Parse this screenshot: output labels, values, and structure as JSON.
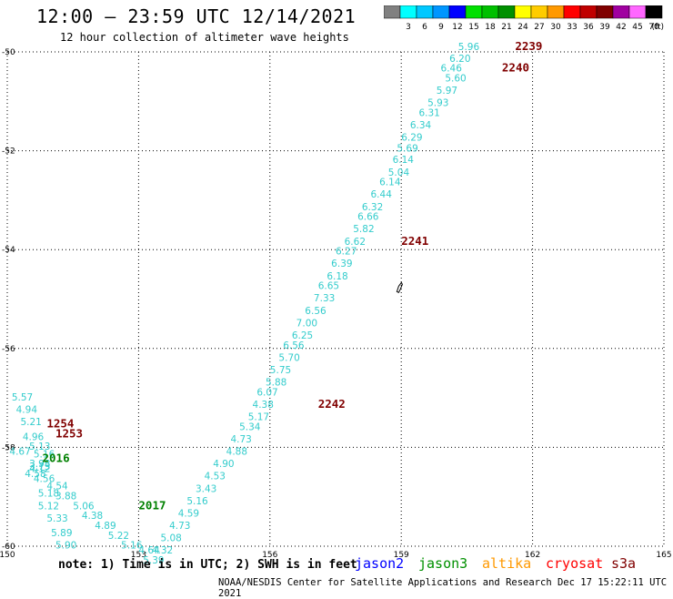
{
  "title": "12:00 – 23:59 UTC 12/14/2021",
  "subtitle": "12 hour collection of altimeter wave heights",
  "legend": {
    "unit_label": "(ft)",
    "bins": [
      {
        "label": "",
        "color": "#808080"
      },
      {
        "label": "3",
        "color": "#00ffff"
      },
      {
        "label": "6",
        "color": "#00c8ff"
      },
      {
        "label": "9",
        "color": "#0096ff"
      },
      {
        "label": "12",
        "color": "#0000ff"
      },
      {
        "label": "15",
        "color": "#00e000"
      },
      {
        "label": "18",
        "color": "#00c000"
      },
      {
        "label": "21",
        "color": "#009000"
      },
      {
        "label": "24",
        "color": "#ffff00"
      },
      {
        "label": "27",
        "color": "#ffcc00"
      },
      {
        "label": "30",
        "color": "#ff9900"
      },
      {
        "label": "33",
        "color": "#ff0000"
      },
      {
        "label": "36",
        "color": "#c00000"
      },
      {
        "label": "39",
        "color": "#800000"
      },
      {
        "label": "42",
        "color": "#a000a0"
      },
      {
        "label": "45",
        "color": "#ff66ff"
      },
      {
        "label": "70",
        "color": "#000000"
      }
    ]
  },
  "axes": {
    "lon_ticks": [
      "150",
      "153",
      "156",
      "159",
      "162",
      "165"
    ],
    "lat_ticks": [
      "-50",
      "-52",
      "-54",
      "-56",
      "-58",
      "-60"
    ]
  },
  "map_data": {
    "lon_range": [
      150,
      165
    ],
    "lat_range": [
      -60,
      -50
    ],
    "time_labels": [
      {
        "text": "2239",
        "lon": 161.6,
        "lat": -49.96,
        "color": "#800000"
      },
      {
        "text": "2240",
        "lon": 161.3,
        "lat": -50.4,
        "color": "#800000"
      },
      {
        "text": "2241",
        "lon": 159.0,
        "lat": -53.9,
        "color": "#800000"
      },
      {
        "text": "2242",
        "lon": 157.1,
        "lat": -57.2,
        "color": "#800000"
      },
      {
        "text": "1254",
        "lon": 150.9,
        "lat": -57.6,
        "color": "#800000"
      },
      {
        "text": "1253",
        "lon": 151.1,
        "lat": -57.8,
        "color": "#800000"
      },
      {
        "text": "2016",
        "lon": 150.8,
        "lat": -58.3,
        "color": "#008000"
      },
      {
        "text": "2017",
        "lon": 153.0,
        "lat": -59.25,
        "color": "#008000"
      }
    ],
    "swh_labels": [
      {
        "text": "5.96",
        "lon": 160.3,
        "lat": -49.96
      },
      {
        "text": "6.20",
        "lon": 160.1,
        "lat": -50.2
      },
      {
        "text": "6.46",
        "lon": 159.9,
        "lat": -50.4
      },
      {
        "text": "5.60",
        "lon": 160.0,
        "lat": -50.6
      },
      {
        "text": "5.97",
        "lon": 159.8,
        "lat": -50.85
      },
      {
        "text": "5.93",
        "lon": 159.6,
        "lat": -51.1
      },
      {
        "text": "6.31",
        "lon": 159.4,
        "lat": -51.3
      },
      {
        "text": "6.34",
        "lon": 159.2,
        "lat": -51.55
      },
      {
        "text": "6.29",
        "lon": 159.0,
        "lat": -51.8
      },
      {
        "text": "5.69",
        "lon": 158.9,
        "lat": -52.02
      },
      {
        "text": "6.14",
        "lon": 158.8,
        "lat": -52.25
      },
      {
        "text": "5.04",
        "lon": 158.7,
        "lat": -52.5
      },
      {
        "text": "6.14",
        "lon": 158.5,
        "lat": -52.7
      },
      {
        "text": "6.44",
        "lon": 158.3,
        "lat": -52.95
      },
      {
        "text": "6.32",
        "lon": 158.1,
        "lat": -53.2
      },
      {
        "text": "6.66",
        "lon": 158.0,
        "lat": -53.4
      },
      {
        "text": "5.82",
        "lon": 157.9,
        "lat": -53.65
      },
      {
        "text": "6.62",
        "lon": 157.7,
        "lat": -53.9
      },
      {
        "text": "6.27",
        "lon": 157.5,
        "lat": -54.1
      },
      {
        "text": "6.39",
        "lon": 157.4,
        "lat": -54.35
      },
      {
        "text": "6.18",
        "lon": 157.3,
        "lat": -54.6
      },
      {
        "text": "6.65",
        "lon": 157.1,
        "lat": -54.8
      },
      {
        "text": "7.33",
        "lon": 157.0,
        "lat": -55.05
      },
      {
        "text": "6.56",
        "lon": 156.8,
        "lat": -55.3
      },
      {
        "text": "7.00",
        "lon": 156.6,
        "lat": -55.55
      },
      {
        "text": "6.25",
        "lon": 156.5,
        "lat": -55.8
      },
      {
        "text": "6.56",
        "lon": 156.3,
        "lat": -56.0
      },
      {
        "text": "5.70",
        "lon": 156.2,
        "lat": -56.25
      },
      {
        "text": "5.75",
        "lon": 156.0,
        "lat": -56.5
      },
      {
        "text": "5.88",
        "lon": 155.9,
        "lat": -56.75
      },
      {
        "text": "6.07",
        "lon": 155.7,
        "lat": -56.95
      },
      {
        "text": "4.38",
        "lon": 155.6,
        "lat": -57.2
      },
      {
        "text": "5.17",
        "lon": 155.5,
        "lat": -57.45
      },
      {
        "text": "5.34",
        "lon": 155.3,
        "lat": -57.65
      },
      {
        "text": "4.73",
        "lon": 155.1,
        "lat": -57.9
      },
      {
        "text": "4.88",
        "lon": 155.0,
        "lat": -58.15
      },
      {
        "text": "4.90",
        "lon": 154.7,
        "lat": -58.4
      },
      {
        "text": "4.53",
        "lon": 154.5,
        "lat": -58.65
      },
      {
        "text": "3.43",
        "lon": 154.3,
        "lat": -58.9
      },
      {
        "text": "5.16",
        "lon": 154.1,
        "lat": -59.15
      },
      {
        "text": "4.59",
        "lon": 153.9,
        "lat": -59.4
      },
      {
        "text": "4.73",
        "lon": 153.7,
        "lat": -59.65
      },
      {
        "text": "5.08",
        "lon": 153.5,
        "lat": -59.9
      },
      {
        "text": "4.32",
        "lon": 153.3,
        "lat": -60.15
      },
      {
        "text": "4.64",
        "lon": 153.0,
        "lat": -60.15
      },
      {
        "text": "5.39",
        "lon": 153.1,
        "lat": -60.35
      },
      {
        "text": "5.16",
        "lon": 152.6,
        "lat": -60.05
      },
      {
        "text": "5.22",
        "lon": 152.3,
        "lat": -59.85
      },
      {
        "text": "4.89",
        "lon": 152.0,
        "lat": -59.65
      },
      {
        "text": "4.38",
        "lon": 151.7,
        "lat": -59.45
      },
      {
        "text": "5.06",
        "lon": 151.5,
        "lat": -59.25
      },
      {
        "text": "3.88",
        "lon": 151.1,
        "lat": -59.05
      },
      {
        "text": "4.54",
        "lon": 150.9,
        "lat": -58.85
      },
      {
        "text": "4.56",
        "lon": 150.6,
        "lat": -58.7
      },
      {
        "text": "4.58",
        "lon": 150.4,
        "lat": -58.6
      },
      {
        "text": "5.18",
        "lon": 150.7,
        "lat": -59.0
      },
      {
        "text": "5.12",
        "lon": 150.7,
        "lat": -59.25
      },
      {
        "text": "5.33",
        "lon": 150.9,
        "lat": -59.5
      },
      {
        "text": "5.89",
        "lon": 151.0,
        "lat": -59.8
      },
      {
        "text": "5.90",
        "lon": 151.1,
        "lat": -60.05
      },
      {
        "text": "3.98",
        "lon": 150.5,
        "lat": -58.4
      },
      {
        "text": "4.12",
        "lon": 150.5,
        "lat": -58.5
      },
      {
        "text": "3.73",
        "lon": 150.5,
        "lat": -58.45
      },
      {
        "text": "5.16",
        "lon": 150.6,
        "lat": -58.2
      },
      {
        "text": "5.13",
        "lon": 150.5,
        "lat": -58.05
      },
      {
        "text": "4.67",
        "lon": 150.05,
        "lat": -58.15
      },
      {
        "text": "4.96",
        "lon": 150.35,
        "lat": -57.85
      },
      {
        "text": "5.21",
        "lon": 150.3,
        "lat": -57.55
      },
      {
        "text": "4.94",
        "lon": 150.2,
        "lat": -57.3
      },
      {
        "text": "5.57",
        "lon": 150.1,
        "lat": -57.05
      }
    ]
  },
  "note": "note: 1) Time is in UTC; 2) SWH is in feet",
  "satellites": [
    {
      "name": "jason2",
      "color": "#0000ff"
    },
    {
      "name": "jason3",
      "color": "#009000"
    },
    {
      "name": "altika",
      "color": "#ff9900"
    },
    {
      "name": "cryosat",
      "color": "#ff0000"
    },
    {
      "name": "s3a",
      "color": "#800000"
    }
  ],
  "footer": "NOAA/NESDIS Center for Satellite Applications and Research   Dec 17 15:22:11 UTC 2021"
}
